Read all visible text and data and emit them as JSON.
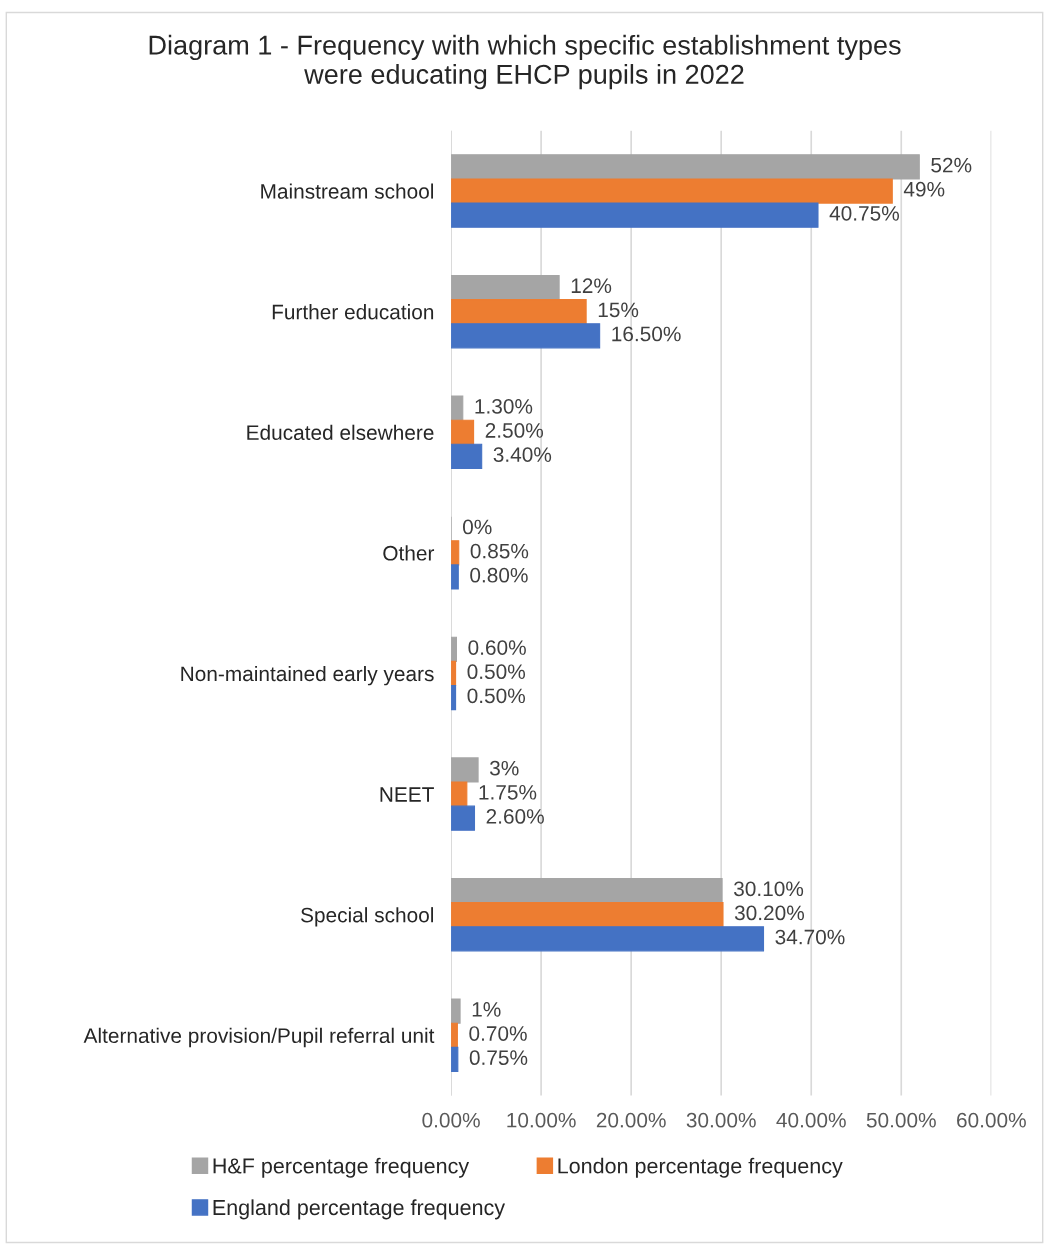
{
  "chart_data": {
    "type": "bar",
    "orientation": "horizontal",
    "title": "Diagram 1 - Frequency with which specific establishment types\nwere educating EHCP pupils in 2022",
    "categories": [
      "Mainstream school",
      "Further education",
      "Educated elsewhere",
      "Other",
      "Non-maintained early years",
      "NEET",
      "Special school",
      "Alternative provision/Pupil referral unit"
    ],
    "series": [
      {
        "name": "H&F percentage frequency",
        "color": "#a5a5a5",
        "values": [
          52,
          12,
          1.3,
          0,
          0.6,
          3,
          30.1,
          1
        ],
        "value_labels": [
          "52%",
          "12%",
          "1.30%",
          "0%",
          "0.60%",
          "3%",
          "30.10%",
          "1%"
        ]
      },
      {
        "name": "London percentage frequency",
        "color": "#ed7d31",
        "values": [
          49,
          15,
          2.5,
          0.85,
          0.5,
          1.75,
          30.2,
          0.7
        ],
        "value_labels": [
          "49%",
          "15%",
          "2.50%",
          "0.85%",
          "0.50%",
          "1.75%",
          "30.20%",
          "0.70%"
        ]
      },
      {
        "name": "England percentage frequency",
        "color": "#4472c4",
        "values": [
          40.75,
          16.5,
          3.4,
          0.8,
          0.5,
          2.6,
          34.7,
          0.75
        ],
        "value_labels": [
          "40.75%",
          "16.50%",
          "3.40%",
          "0.80%",
          "0.50%",
          "2.60%",
          "34.70%",
          "0.75%"
        ]
      }
    ],
    "xlim": [
      0,
      60
    ],
    "xticks": [
      {
        "value": 0,
        "label": "0.00%"
      },
      {
        "value": 10,
        "label": "10.00%"
      },
      {
        "value": 20,
        "label": "20.00%"
      },
      {
        "value": 30,
        "label": "30.00%"
      },
      {
        "value": 40,
        "label": "40.00%"
      },
      {
        "value": 50,
        "label": "50.00%"
      },
      {
        "value": 60,
        "label": "60.00%"
      }
    ],
    "grid": "x",
    "legend": "bottom"
  }
}
